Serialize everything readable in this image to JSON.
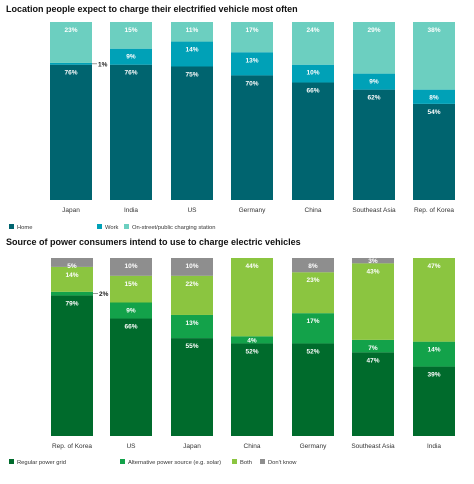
{
  "chart_data": [
    {
      "type": "bar",
      "stacked": true,
      "percent_scale": true,
      "title": "Location people expect to charge their electrified vehicle most often",
      "categories": [
        "Japan",
        "India",
        "US",
        "Germany",
        "China",
        "Southeast Asia",
        "Rep. of Korea"
      ],
      "ylim": [
        0,
        100
      ],
      "grid": false,
      "legend_position": "bottom-left",
      "series": [
        {
          "name": "Home",
          "color": "#00646f",
          "label_color": "#ffffff",
          "values": [
            76,
            76,
            75,
            70,
            66,
            62,
            54
          ]
        },
        {
          "name": "Work",
          "color": "#00a1b7",
          "label_color": "#ffffff",
          "values": [
            1,
            9,
            14,
            13,
            10,
            9,
            8
          ]
        },
        {
          "name": "On-street/public charging station",
          "color": "#6ccfc0",
          "label_color": "#ffffff",
          "values": [
            23,
            15,
            11,
            17,
            24,
            29,
            38
          ]
        }
      ]
    },
    {
      "type": "bar",
      "stacked": true,
      "percent_scale": true,
      "title": "Source of power consumers intend to use to charge electric vehicles",
      "categories": [
        "Rep. of Korea",
        "US",
        "Japan",
        "China",
        "Germany",
        "Southeast Asia",
        "India"
      ],
      "ylim": [
        0,
        100
      ],
      "grid": false,
      "legend_position": "bottom-left",
      "series": [
        {
          "name": "Regular power grid",
          "color": "#006b2c",
          "label_color": "#ffffff",
          "values": [
            79,
            66,
            55,
            52,
            52,
            47,
            39
          ]
        },
        {
          "name": "Alternative power source (e.g. solar)",
          "color": "#13a24a",
          "label_color": "#ffffff",
          "values": [
            2,
            9,
            13,
            4,
            17,
            7,
            14
          ]
        },
        {
          "name": "Both",
          "color": "#8bc540",
          "label_color": "#ffffff",
          "values": [
            14,
            15,
            22,
            44,
            23,
            43,
            47
          ]
        },
        {
          "name": "Don't know",
          "color": "#8e8e8e",
          "label_color": "#ffffff",
          "values": [
            5,
            10,
            10,
            0,
            8,
            3,
            0
          ]
        }
      ]
    }
  ]
}
